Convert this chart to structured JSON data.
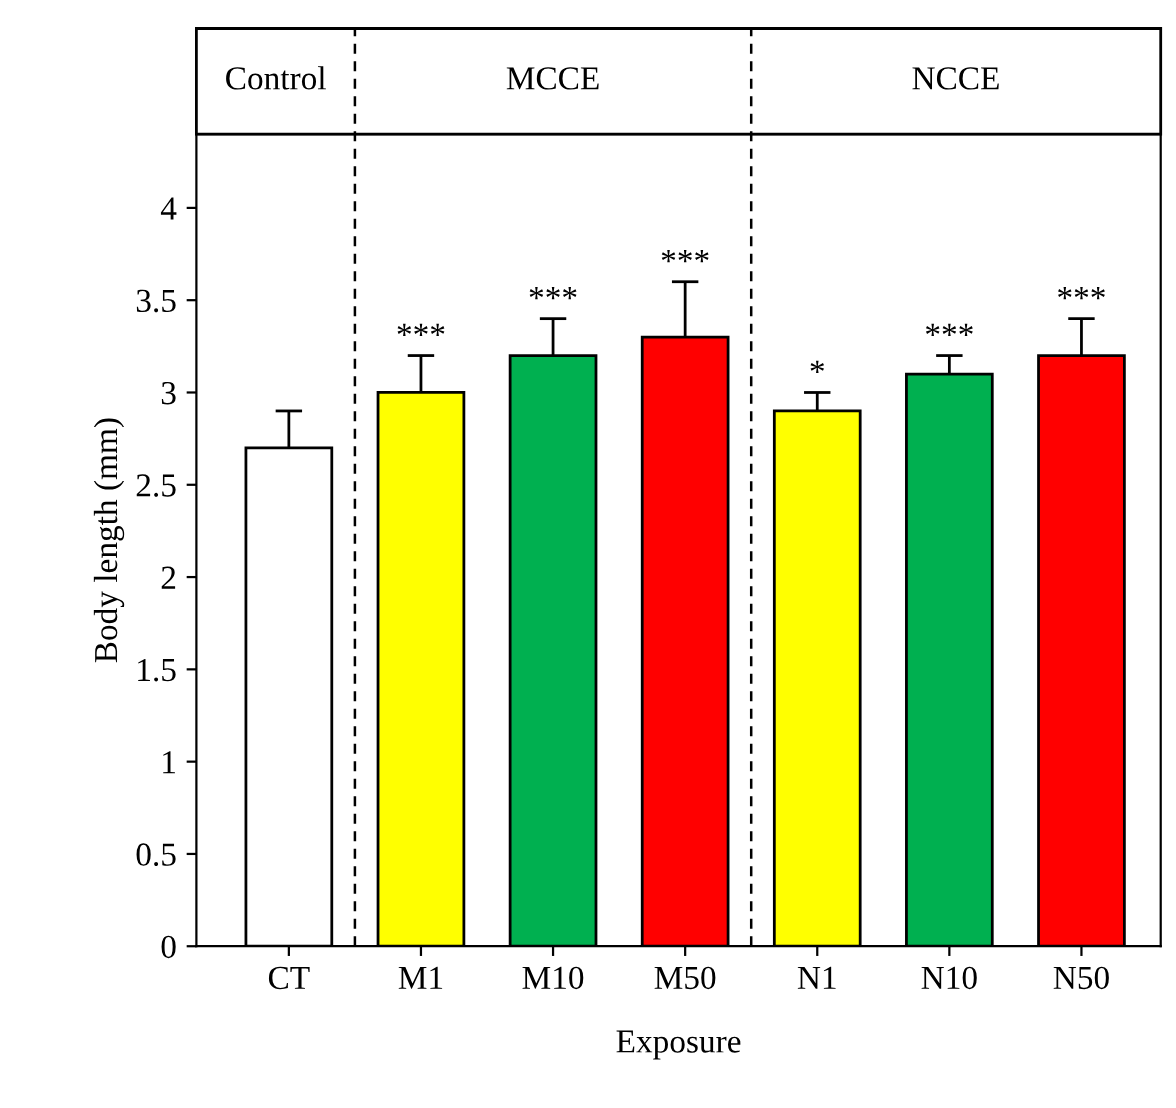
{
  "chart_data": {
    "type": "bar",
    "xlabel": "Exposure",
    "ylabel": "Body length (mm)",
    "categories": [
      "CT",
      "M1",
      "M10",
      "M50",
      "N1",
      "N10",
      "N50"
    ],
    "values": [
      2.7,
      3.0,
      3.2,
      3.3,
      2.9,
      3.1,
      3.2
    ],
    "colors": [
      "#ffffff",
      "#ffff00",
      "#00b050",
      "#ff0000",
      "#ffff00",
      "#00b050",
      "#ff0000"
    ],
    "errors": [
      [
        2.7,
        2.9
      ],
      [
        3.0,
        3.2
      ],
      [
        3.2,
        3.4
      ],
      [
        3.3,
        3.6
      ],
      [
        2.9,
        3.0
      ],
      [
        3.1,
        3.2
      ],
      [
        3.2,
        3.4
      ]
    ],
    "ylim": [
      0,
      4.4
    ],
    "yticks": [
      0,
      0.5,
      1,
      1.5,
      2,
      2.5,
      3,
      3.5,
      4
    ],
    "grid": false,
    "legend": false,
    "annotations": [
      {
        "text": "Control"
      },
      {
        "text": "MCCE"
      },
      {
        "text": "NCCE"
      },
      {
        "text": "***",
        "x": "M1",
        "y": 3.2
      },
      {
        "text": "***",
        "x": "M10",
        "y": 3.4
      },
      {
        "text": "***",
        "x": "M50",
        "y": 3.6
      },
      {
        "text": "*",
        "x": "N1",
        "y": 3.0
      },
      {
        "text": "***",
        "x": "N10",
        "y": 3.2
      },
      {
        "text": "***",
        "x": "N50",
        "y": 3.4
      }
    ]
  }
}
